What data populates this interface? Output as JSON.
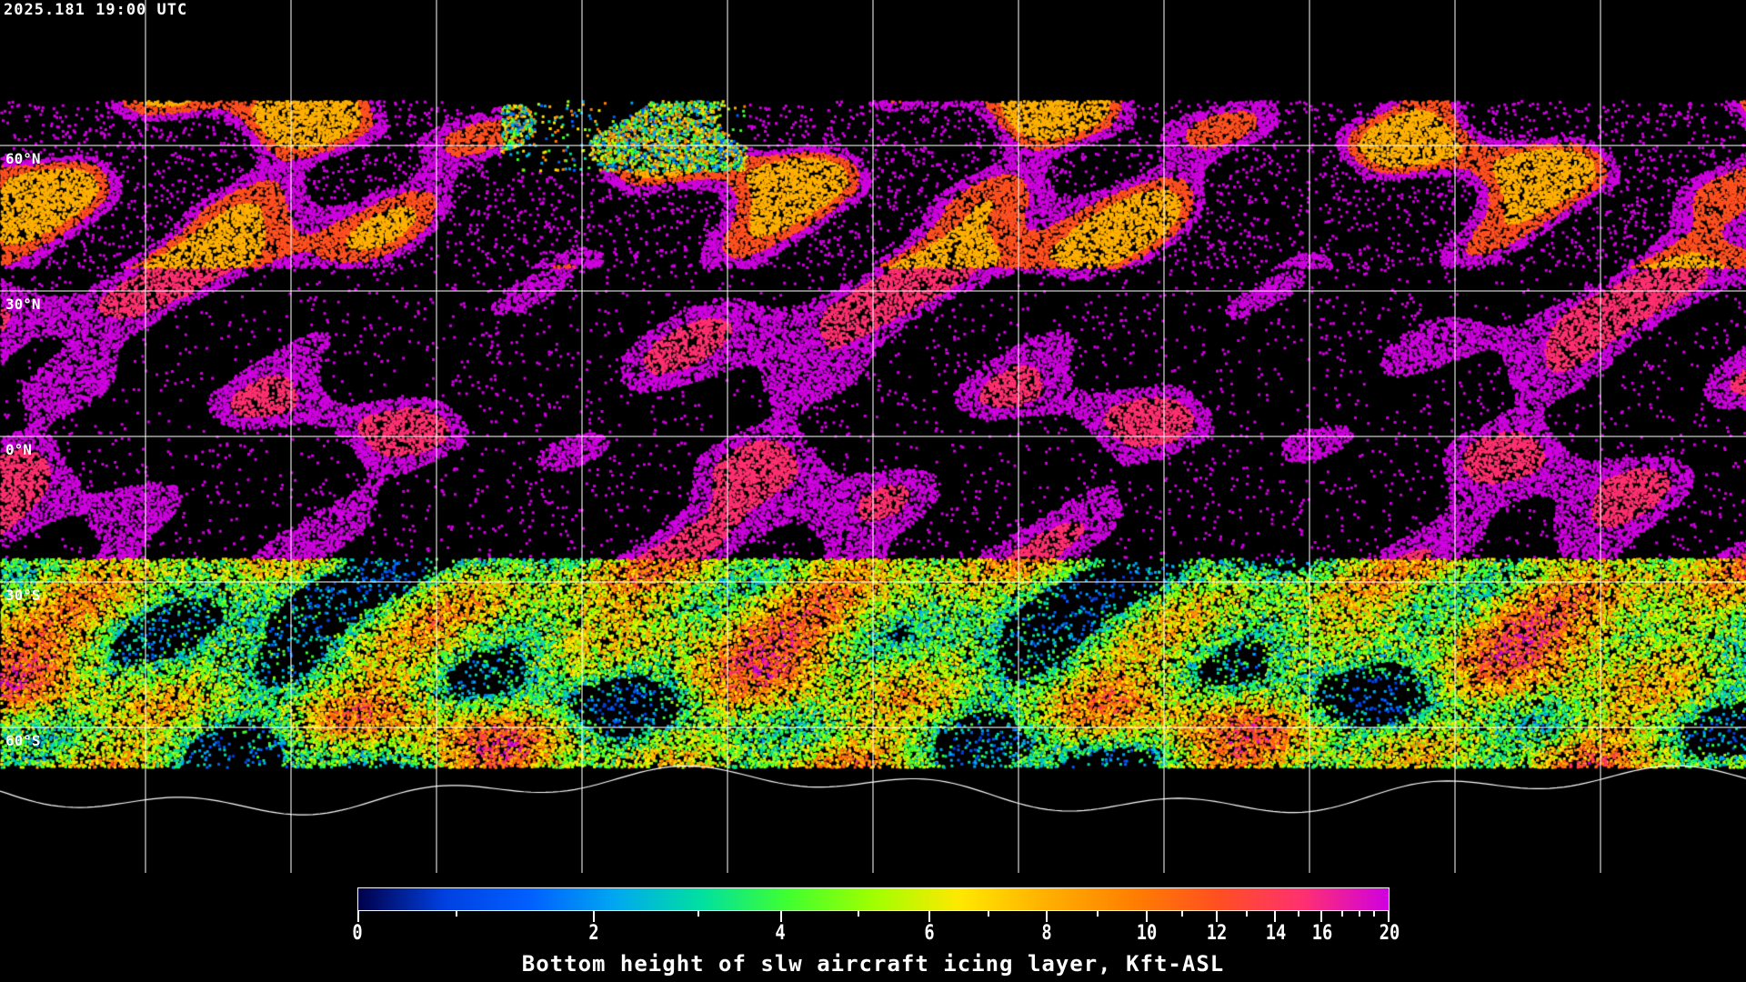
{
  "timestamp": "2025.181 19:00 UTC",
  "latitude_labels": [
    {
      "lat": 60,
      "text": "60°N"
    },
    {
      "lat": 30,
      "text": "30°N"
    },
    {
      "lat": 0,
      "text": "0°N"
    },
    {
      "lat": -30,
      "text": "30°S"
    },
    {
      "lat": -60,
      "text": "60°S"
    }
  ],
  "gridline_spacing_degrees": 30,
  "colorbar": {
    "title": "Bottom height of slw aircraft icing layer, Kft-ASL",
    "min": 0,
    "max": 20,
    "tick_labels": [
      "0",
      "2",
      "4",
      "6",
      "8",
      "10",
      "12",
      "14",
      "16",
      "20"
    ],
    "scale": "nonlinear",
    "colors": [
      "#00004a",
      "#0040e0",
      "#0060ff",
      "#00a8f0",
      "#00e0a0",
      "#40ff30",
      "#a0ff00",
      "#ffe800",
      "#ffb000",
      "#ff8000",
      "#ff5020",
      "#ff3070",
      "#d000e0"
    ]
  },
  "map": {
    "projection": "equirectangular",
    "coastlines_color": "#ffffff",
    "grid_color": "#ffffff",
    "background": "#000000"
  }
}
